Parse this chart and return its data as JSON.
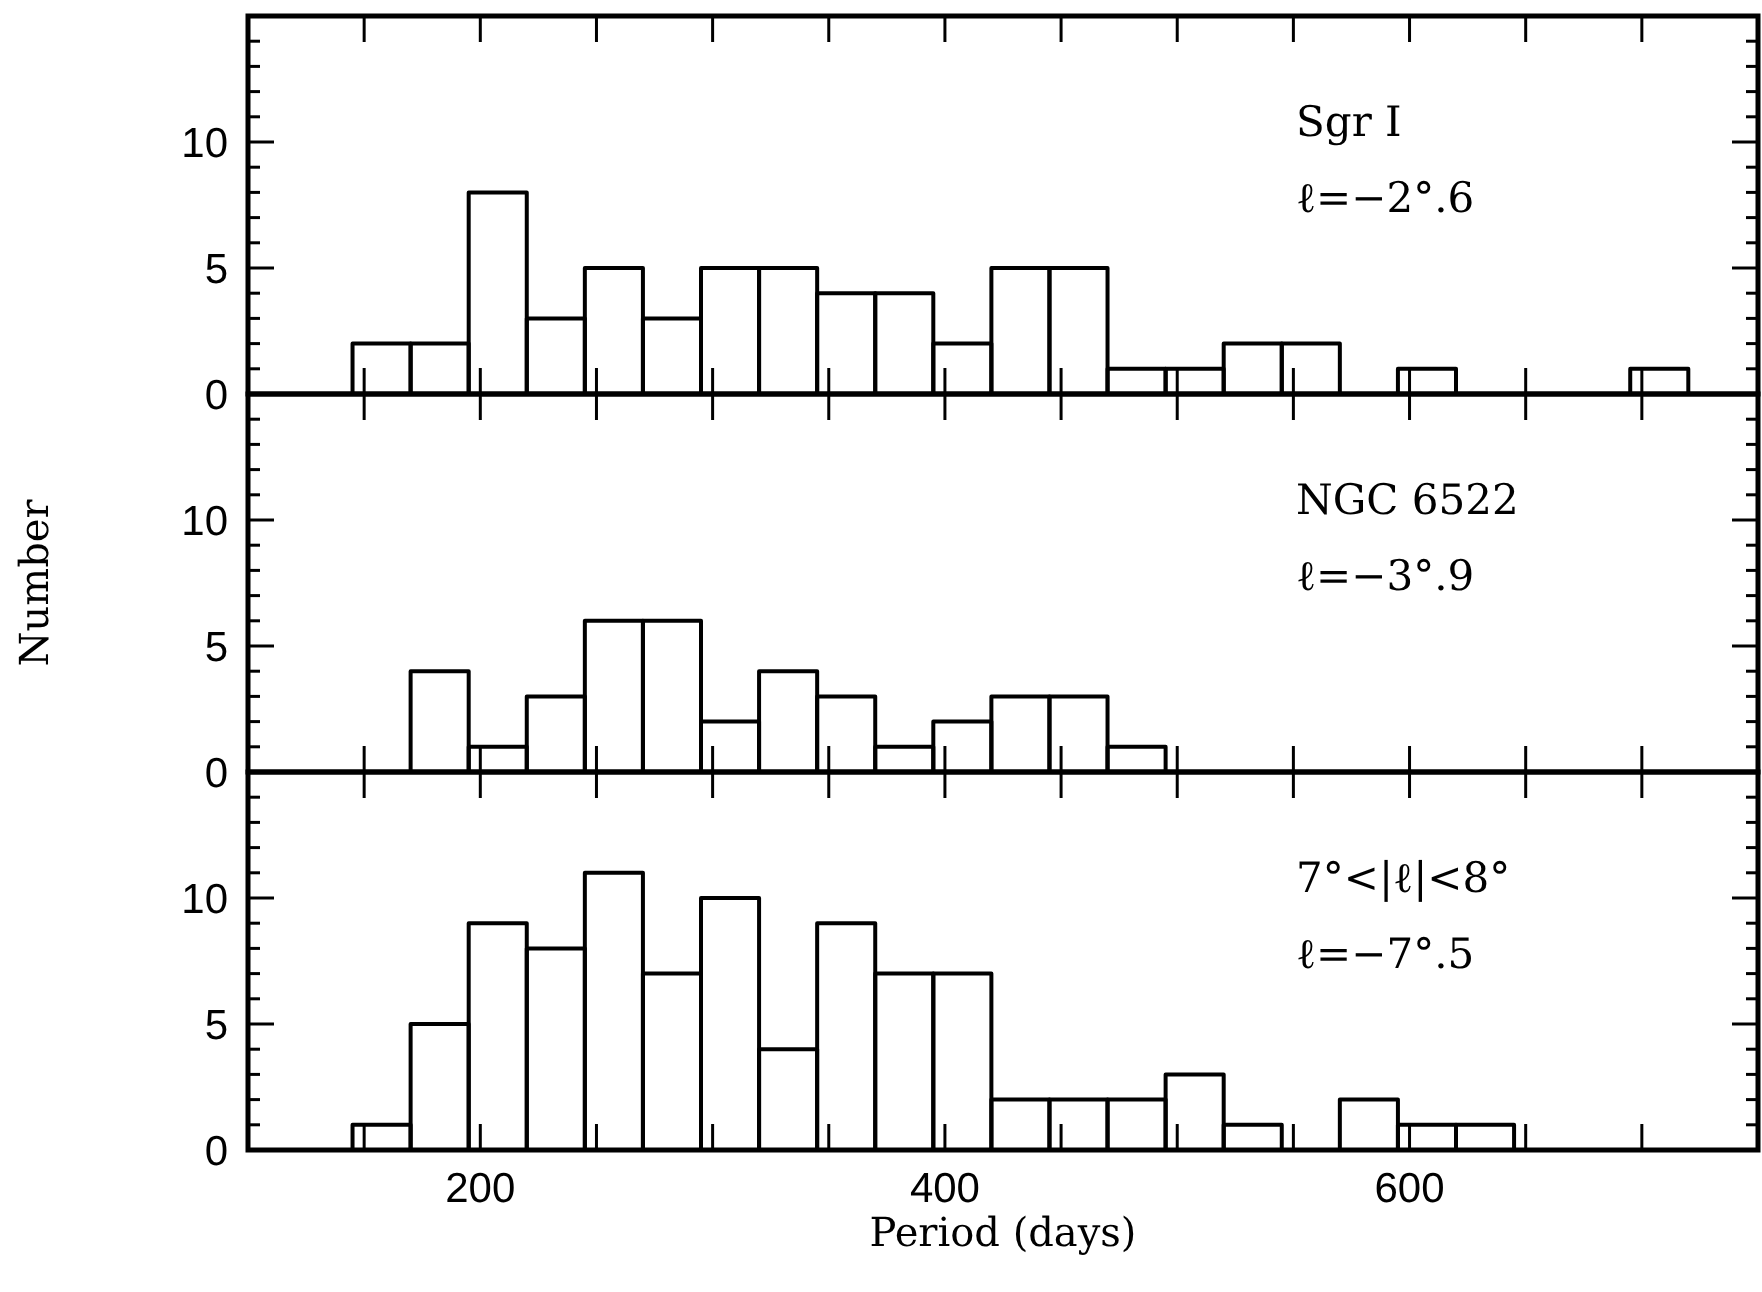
{
  "chart_data": [
    {
      "type": "histogram",
      "bins": [
        145,
        170,
        195,
        220,
        245,
        270,
        295,
        320,
        345,
        370,
        395,
        420,
        445,
        470,
        495,
        520,
        545,
        570,
        595,
        620,
        645,
        670,
        695,
        720
      ],
      "values": [
        2,
        2,
        8,
        3,
        5,
        3,
        5,
        5,
        4,
        4,
        2,
        5,
        5,
        1,
        1,
        2,
        2,
        0,
        1,
        0,
        0,
        0,
        1
      ],
      "xlim": [
        100,
        750
      ],
      "ylim": [
        0,
        15
      ],
      "xticks": [
        {
          "value": 150,
          "label": null
        },
        {
          "value": 200,
          "label": null
        },
        {
          "value": 250,
          "label": null
        },
        {
          "value": 300,
          "label": null
        },
        {
          "value": 350,
          "label": null
        },
        {
          "value": 400,
          "label": null
        },
        {
          "value": 450,
          "label": null
        },
        {
          "value": 500,
          "label": null
        },
        {
          "value": 550,
          "label": null
        },
        {
          "value": 600,
          "label": null
        },
        {
          "value": 650,
          "label": null
        },
        {
          "value": 700,
          "label": null
        }
      ],
      "yticks": [
        0,
        {
          "value": 1,
          "label": null
        },
        {
          "value": 2,
          "label": null
        },
        {
          "value": 3,
          "label": null
        },
        {
          "value": 4,
          "label": null
        },
        5,
        {
          "value": 6,
          "label": null
        },
        {
          "value": 7,
          "label": null
        },
        {
          "value": 8,
          "label": null
        },
        {
          "value": 9,
          "label": null
        },
        10,
        {
          "value": 11,
          "label": null
        },
        {
          "value": 12,
          "label": null
        },
        {
          "value": 13,
          "label": null
        },
        {
          "value": 14,
          "label": null
        }
      ],
      "tick_labels": "y",
      "annotations": [
        "Sgr I",
        "ℓ=−2°.6"
      ]
    },
    {
      "type": "histogram",
      "bins": [
        145,
        170,
        195,
        220,
        245,
        270,
        295,
        320,
        345,
        370,
        395,
        420,
        445,
        470,
        495,
        520,
        545,
        570,
        595,
        620,
        645,
        670,
        695,
        720
      ],
      "values": [
        0,
        4,
        1,
        3,
        6,
        6,
        2,
        4,
        3,
        1,
        2,
        3,
        3,
        1,
        0,
        0,
        0,
        0,
        0,
        0,
        0,
        0,
        0
      ],
      "xlim": [
        100,
        750
      ],
      "ylim": [
        0,
        15
      ],
      "xticks": [
        {
          "value": 150,
          "label": null
        },
        {
          "value": 200,
          "label": null
        },
        {
          "value": 250,
          "label": null
        },
        {
          "value": 300,
          "label": null
        },
        {
          "value": 350,
          "label": null
        },
        {
          "value": 400,
          "label": null
        },
        {
          "value": 450,
          "label": null
        },
        {
          "value": 500,
          "label": null
        },
        {
          "value": 550,
          "label": null
        },
        {
          "value": 600,
          "label": null
        },
        {
          "value": 650,
          "label": null
        },
        {
          "value": 700,
          "label": null
        }
      ],
      "yticks": [
        0,
        {
          "value": 1,
          "label": null
        },
        {
          "value": 2,
          "label": null
        },
        {
          "value": 3,
          "label": null
        },
        {
          "value": 4,
          "label": null
        },
        5,
        {
          "value": 6,
          "label": null
        },
        {
          "value": 7,
          "label": null
        },
        {
          "value": 8,
          "label": null
        },
        {
          "value": 9,
          "label": null
        },
        10,
        {
          "value": 11,
          "label": null
        },
        {
          "value": 12,
          "label": null
        },
        {
          "value": 13,
          "label": null
        },
        {
          "value": 14,
          "label": null
        }
      ],
      "tick_labels": "y",
      "ylabel": "Number",
      "annotations": [
        "NGC 6522",
        "ℓ=−3°.9"
      ]
    },
    {
      "type": "histogram",
      "bins": [
        145,
        170,
        195,
        220,
        245,
        270,
        295,
        320,
        345,
        370,
        395,
        420,
        445,
        470,
        495,
        520,
        545,
        570,
        595,
        620,
        645,
        670,
        695,
        720
      ],
      "values": [
        1,
        5,
        9,
        8,
        11,
        7,
        10,
        4,
        9,
        7,
        7,
        2,
        2,
        2,
        3,
        1,
        0,
        2,
        1,
        1,
        0,
        0,
        0
      ],
      "xlim": [
        100,
        750
      ],
      "ylim": [
        0,
        15
      ],
      "xticks": [
        {
          "value": 150,
          "label": null
        },
        200,
        {
          "value": 250,
          "label": null
        },
        {
          "value": 300,
          "label": null
        },
        {
          "value": 350,
          "label": null
        },
        400,
        {
          "value": 450,
          "label": null
        },
        {
          "value": 500,
          "label": null
        },
        {
          "value": 550,
          "label": null
        },
        600,
        {
          "value": 650,
          "label": null
        },
        {
          "value": 700,
          "label": null
        }
      ],
      "yticks": [
        0,
        {
          "value": 1,
          "label": null
        },
        {
          "value": 2,
          "label": null
        },
        {
          "value": 3,
          "label": null
        },
        {
          "value": 4,
          "label": null
        },
        5,
        {
          "value": 6,
          "label": null
        },
        {
          "value": 7,
          "label": null
        },
        {
          "value": 8,
          "label": null
        },
        {
          "value": 9,
          "label": null
        },
        10,
        {
          "value": 11,
          "label": null
        },
        {
          "value": 12,
          "label": null
        },
        {
          "value": 13,
          "label": null
        },
        {
          "value": 14,
          "label": null
        }
      ],
      "xlabel": "Period (days)",
      "annotations": [
        "7°<|ℓ|<8°",
        "ℓ=−7°.5"
      ]
    }
  ]
}
